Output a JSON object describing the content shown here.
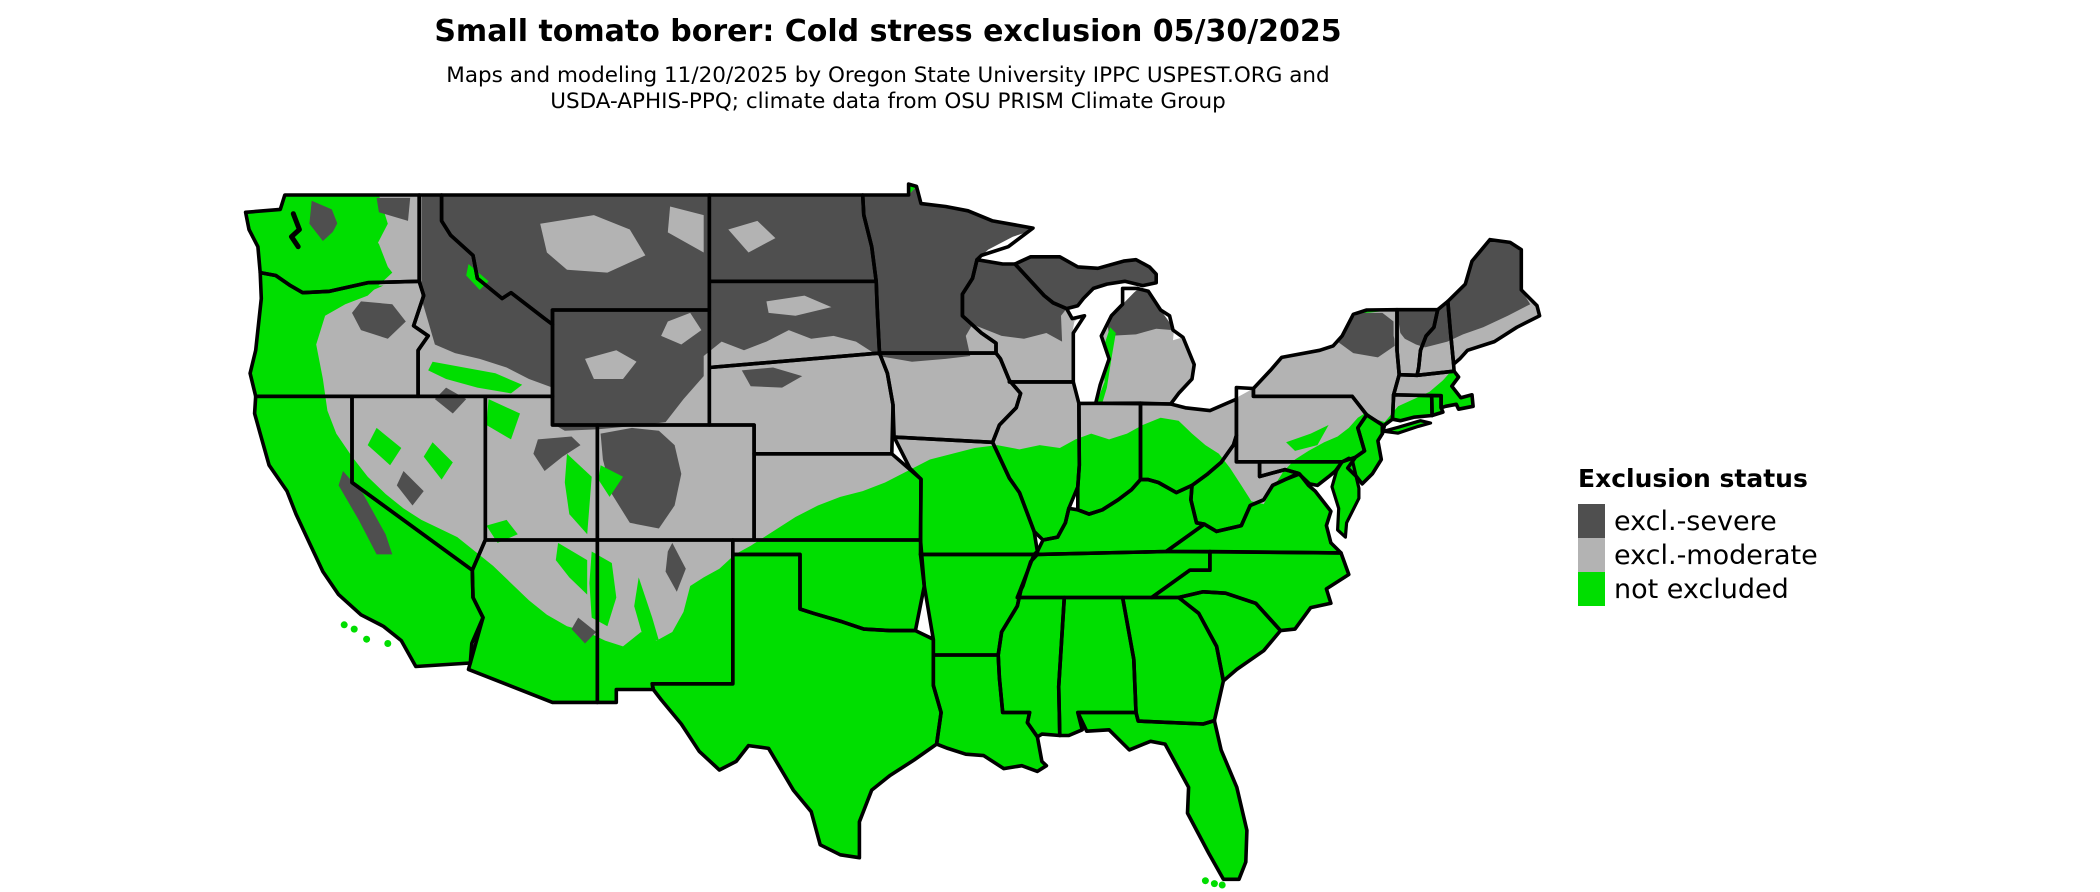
{
  "header": {
    "title": "Small tomato borer: Cold stress exclusion 05/30/2025",
    "subtitle_line1": "Maps and modeling 11/20/2025 by Oregon State University IPPC USPEST.ORG and",
    "subtitle_line2": "USDA-APHIS-PPQ; climate data from OSU PRISM Climate Group"
  },
  "legend": {
    "title": "Exclusion status",
    "items": [
      {
        "id": "severe",
        "label": "excl.-severe",
        "color": "#4F4F4F"
      },
      {
        "id": "moderate",
        "label": "excl.-moderate",
        "color": "#B3B3B3"
      },
      {
        "id": "not_excluded",
        "label": "not excluded",
        "color": "#00DE00"
      }
    ]
  },
  "map": {
    "region": "Continental United States",
    "background": "#FFFFFF",
    "border_color": "#000000",
    "water_color": "#FFFFFF"
  }
}
